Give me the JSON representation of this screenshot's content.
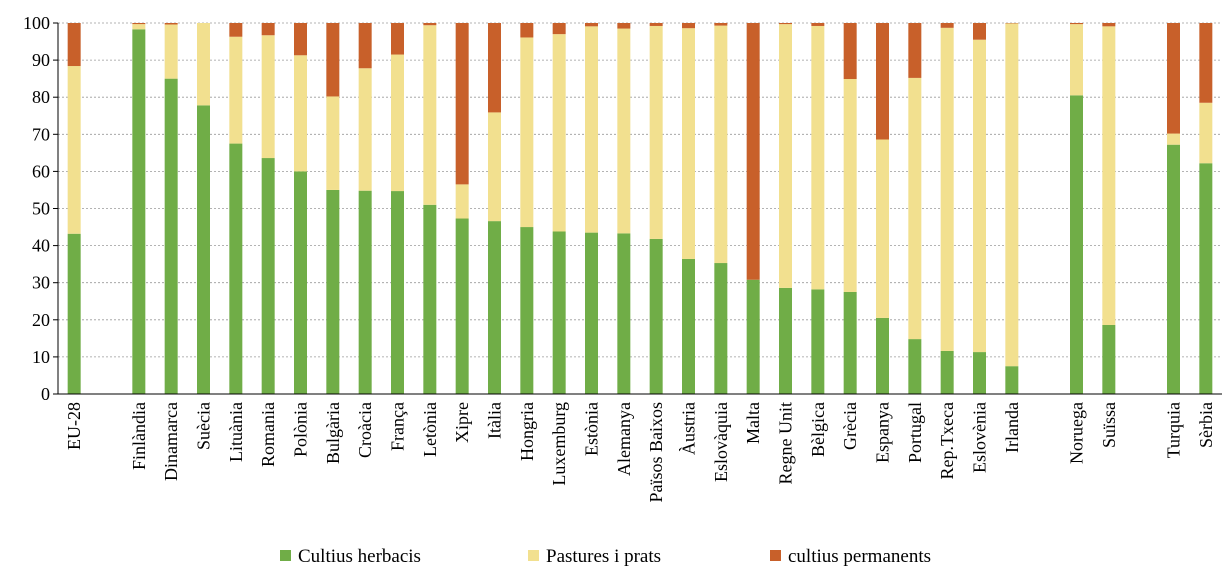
{
  "chart_data": {
    "type": "bar",
    "stacked": true,
    "ylim": [
      0,
      100
    ],
    "yticks": [
      0,
      10,
      20,
      30,
      40,
      50,
      60,
      70,
      80,
      90,
      100
    ],
    "grid": "horizontal-dotted",
    "legend_position": "bottom",
    "slots": [
      "EU-28",
      "",
      "Finlàndia",
      "Dinamarca",
      "Suècia",
      "Lituània",
      "Romania",
      "Polònia",
      "Bulgària",
      "Croàcia",
      "França",
      "Letònia",
      "Xipre",
      "Itàlia",
      "Hongria",
      "Luxemburg",
      "Estònia",
      "Alemanya",
      "Països Baixos",
      "Àustria",
      "Eslovàquia",
      "Malta",
      "Regne Unit",
      "Bèlgica",
      "Grècia",
      "Espanya",
      "Portugal",
      "Rep.Txeca",
      "Eslovènia",
      "Irlanda",
      "",
      "Noruega",
      "Suïssa",
      "",
      "Turquia",
      "Sèrbia"
    ],
    "series": [
      {
        "name": "Cultius herbacis",
        "color": "#70ad47",
        "values": [
          43.2,
          null,
          98.3,
          85,
          77.8,
          67.5,
          63.6,
          60,
          55,
          54.8,
          54.7,
          51,
          47.3,
          46.6,
          45,
          43.8,
          43.5,
          43.3,
          41.8,
          36.4,
          35.3,
          30.8,
          28.6,
          28.2,
          27.5,
          20.5,
          14.8,
          11.6,
          11.3,
          7.5,
          null,
          80.5,
          18.6,
          null,
          67.2,
          62.2
        ]
      },
      {
        "name": "Pastures i prats",
        "color": "#f2e08f",
        "values": [
          45.2,
          null,
          1.4,
          14.6,
          22.2,
          28.8,
          33.1,
          31.3,
          25.2,
          33,
          36.8,
          48.4,
          9.2,
          29.3,
          51.1,
          53.2,
          55.6,
          55.2,
          57.4,
          62.2,
          64,
          0,
          71.1,
          71,
          57.4,
          48.1,
          70.4,
          87.1,
          84.2,
          92.4,
          null,
          19.2,
          80.5,
          null,
          3,
          16.3
        ]
      },
      {
        "name": "cultius permanents",
        "color": "#c8602a",
        "values": [
          11.6,
          null,
          0.3,
          0.4,
          0,
          3.7,
          3.3,
          8.7,
          19.8,
          12.2,
          8.5,
          0.6,
          43.5,
          24.1,
          3.9,
          3,
          0.9,
          1.5,
          0.8,
          1.4,
          0.7,
          69.2,
          0.3,
          0.8,
          15.1,
          31.4,
          14.8,
          1.3,
          4.5,
          0.1,
          null,
          0.3,
          0.9,
          null,
          29.8,
          21.5
        ]
      }
    ]
  }
}
